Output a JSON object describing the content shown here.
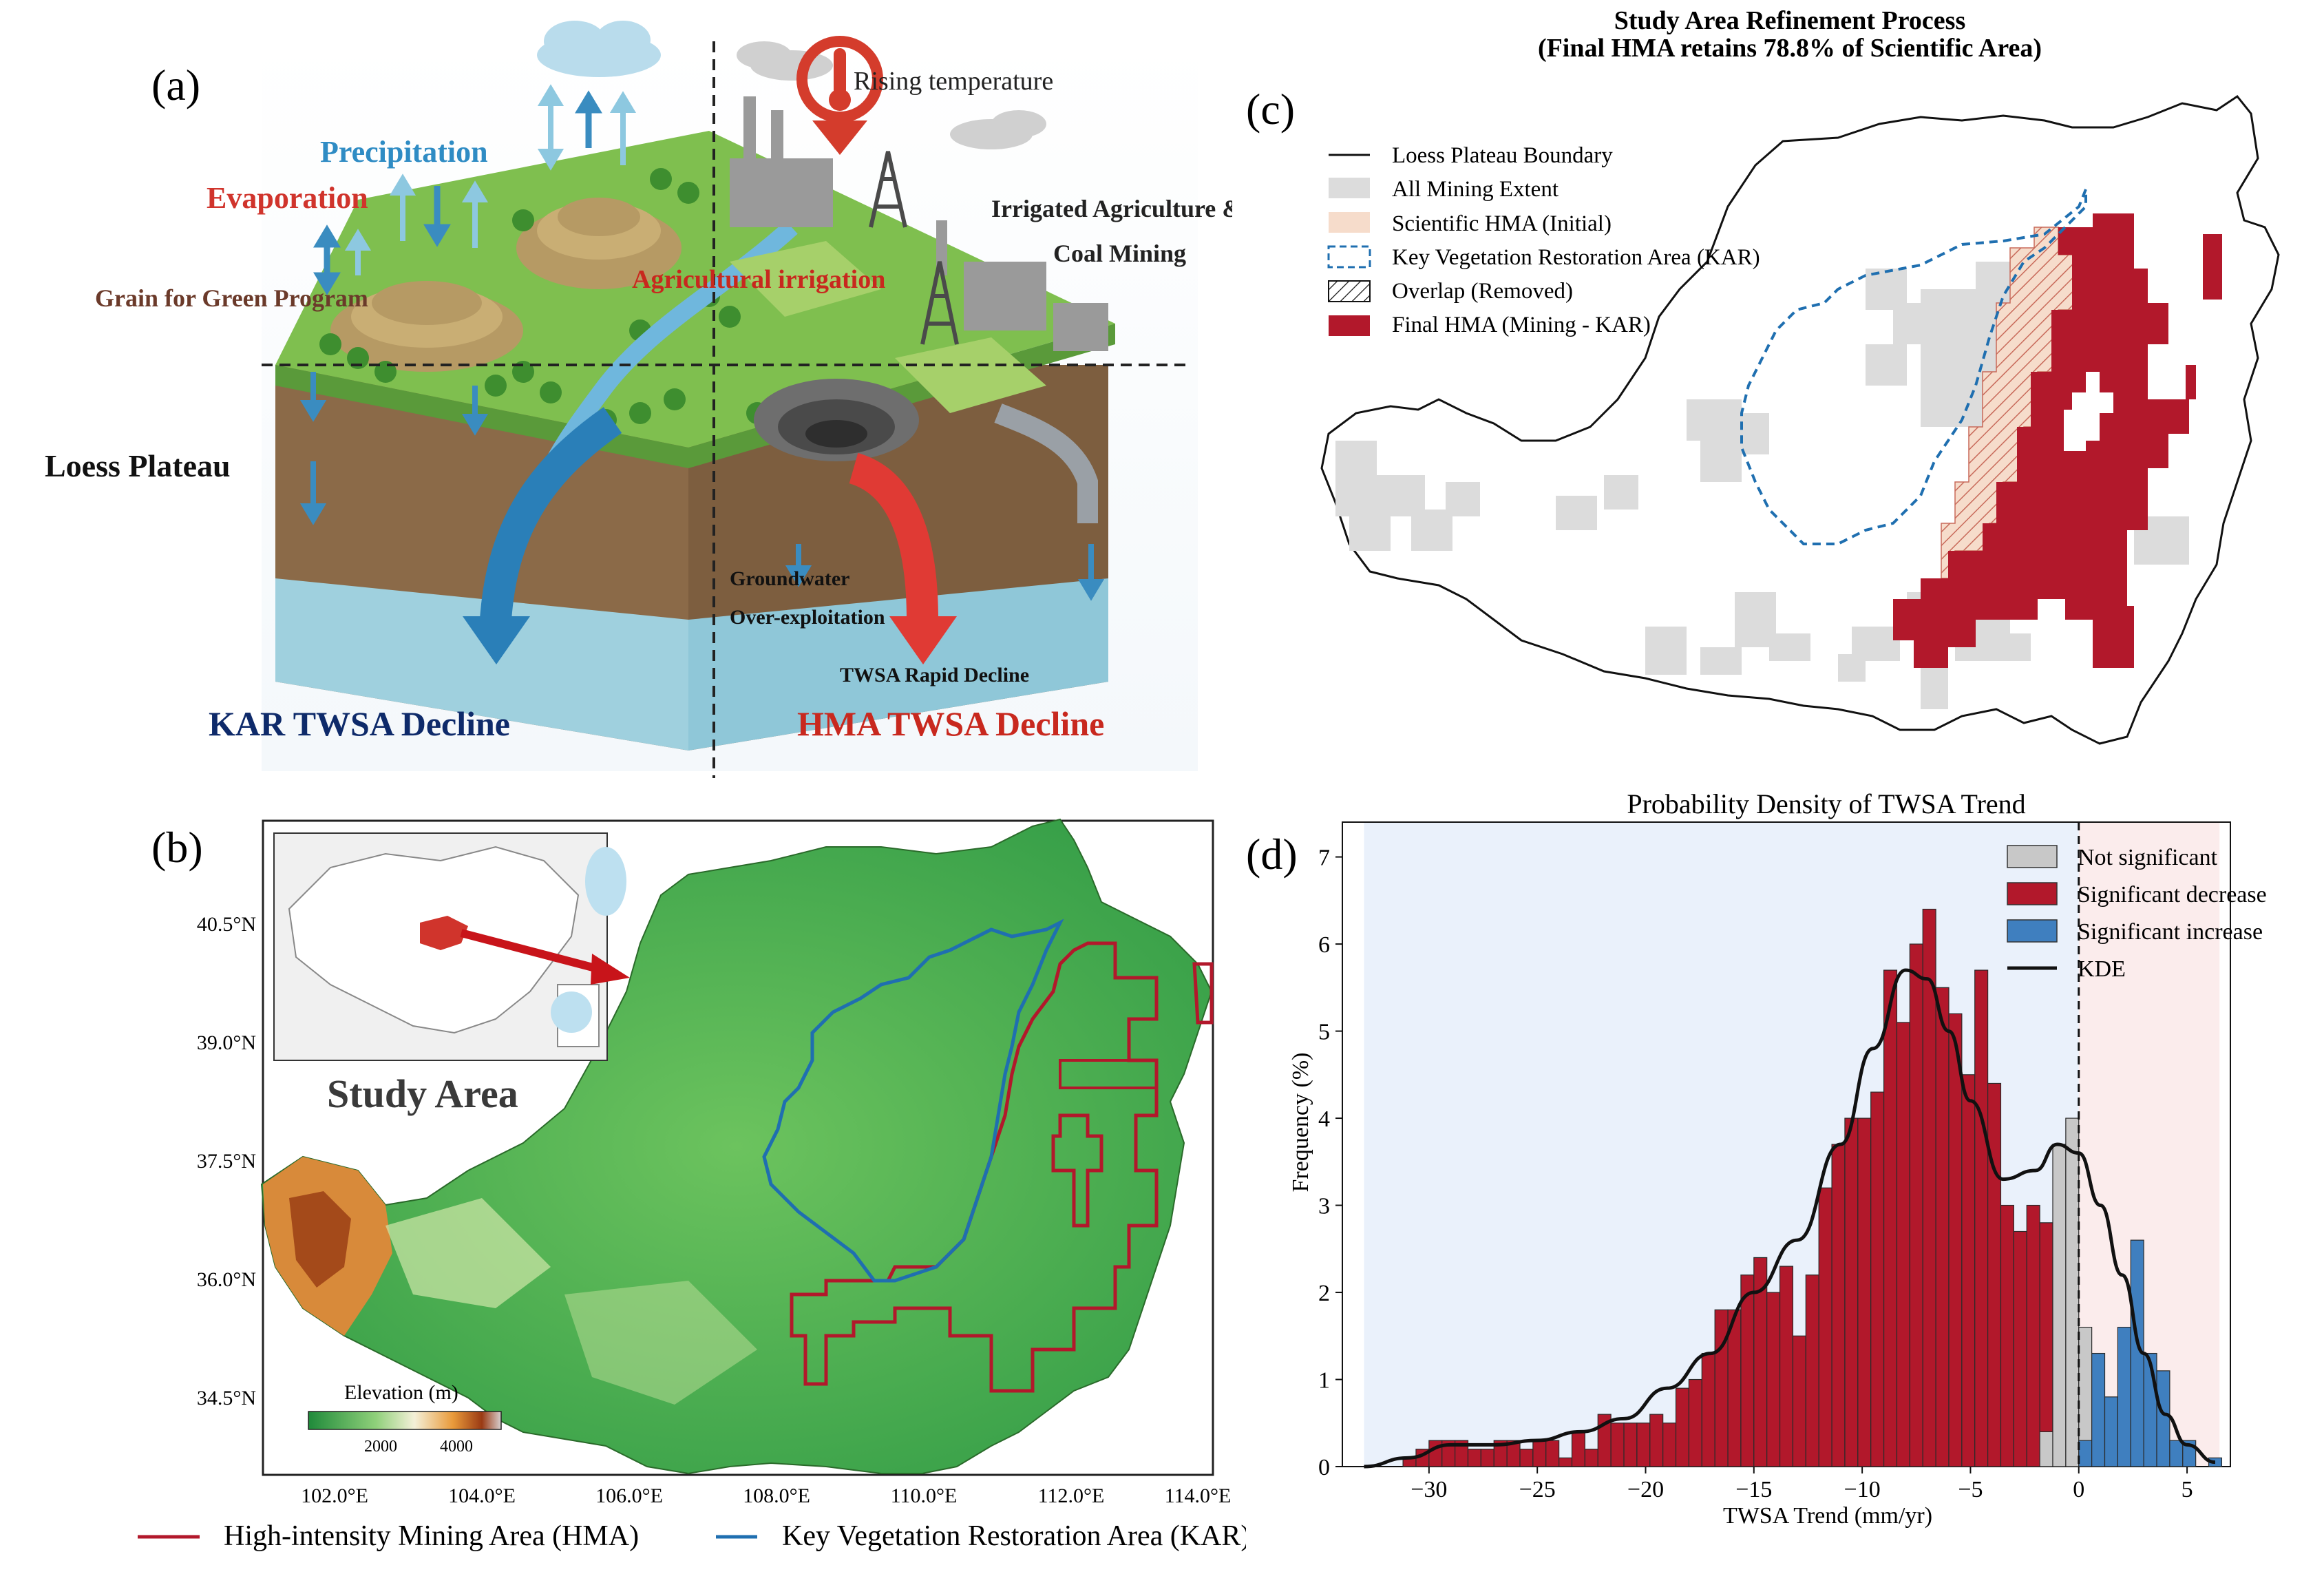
{
  "colors": {
    "hma_red": "#b2182b",
    "kar_blue": "#1f6fb0",
    "grey": "#c8c8c8",
    "blue_bar": "#3f7fbf",
    "hatch_fill": "#f6dccb",
    "neg_bg": "#eaf1fb",
    "pos_bg": "#fbecec"
  },
  "panel_a": {
    "label": "(a)",
    "precipitation": "Precipitation",
    "evaporation": "Evaporation",
    "rising_temperature": "Rising temperature",
    "grain_for_green": "Grain for Green Program",
    "agricultural_irrigation": "Agricultural irrigation",
    "irrigated_agriculture_1": "Irrigated Agriculture &",
    "irrigated_agriculture_2": "Coal Mining",
    "loess_plateau": "Loess Plateau",
    "groundwater_1": "Groundwater",
    "groundwater_2": "Over-exploitation",
    "twsa_rapid_decline": "TWSA Rapid Decline",
    "kar_decline": "KAR TWSA Decline",
    "hma_decline": "HMA TWSA Decline"
  },
  "panel_b": {
    "label": "(b)",
    "study_area": "Study Area",
    "elevation_title": "Elevation (m)",
    "elevation_ticks": [
      "2000",
      "4000"
    ],
    "lat_ticks": [
      "40.5°N",
      "39.0°N",
      "37.5°N",
      "36.0°N",
      "34.5°N"
    ],
    "lon_ticks": [
      "102.0°E",
      "104.0°E",
      "106.0°E",
      "108.0°E",
      "110.0°E",
      "112.0°E",
      "114.0°E"
    ],
    "legend_hma": "High-intensity Mining Area (HMA)",
    "legend_kar": "Key Vegetation Restoration Area (KAR)"
  },
  "panel_c": {
    "label": "(c)",
    "title_line1": "Study Area Refinement Process",
    "title_line2": "(Final HMA retains 78.8% of Scientific Area)",
    "legend": [
      "Loess Plateau Boundary",
      "All Mining Extent",
      "Scientific HMA (Initial)",
      "Key Vegetation Restoration Area (KAR)",
      "Overlap (Removed)",
      "Final HMA (Mining - KAR)"
    ]
  },
  "panel_d": {
    "label": "(d)",
    "legend": [
      "Not significant",
      "Significant decrease",
      "Significant increase",
      "KDE"
    ]
  },
  "chart_data": {
    "type": "bar",
    "title": "Probability Density of TWSA Trend",
    "xlabel": "TWSA Trend (mm/yr)",
    "ylabel": "Frequency (%)",
    "xlim": [
      -34,
      7
    ],
    "ylim": [
      0,
      7.4
    ],
    "x_ticks": [
      -30,
      -25,
      -20,
      -15,
      -10,
      -5,
      0,
      5
    ],
    "x_tick_labels": [
      "−30",
      "−25",
      "−20",
      "−15",
      "−10",
      "−5",
      "0",
      "5"
    ],
    "y_ticks": [
      0,
      1,
      2,
      3,
      4,
      5,
      6,
      7
    ],
    "bin_width": 0.6,
    "series": [
      {
        "name": "Significant decrease",
        "x": [
          -31.2,
          -30.6,
          -30.0,
          -29.4,
          -28.8,
          -28.2,
          -27.6,
          -27.0,
          -26.4,
          -25.8,
          -25.2,
          -24.6,
          -24.0,
          -23.4,
          -22.8,
          -22.2,
          -21.6,
          -21.0,
          -20.4,
          -19.8,
          -19.2,
          -18.6,
          -18.0,
          -17.4,
          -16.8,
          -16.2,
          -15.6,
          -15.0,
          -14.4,
          -13.8,
          -13.2,
          -12.6,
          -12.0,
          -11.4,
          -10.8,
          -10.2,
          -9.6,
          -9.0,
          -8.4,
          -7.8,
          -7.2,
          -6.6,
          -6.0,
          -5.4,
          -4.8,
          -4.2,
          -3.6,
          -3.0,
          -2.4,
          -1.8,
          -1.2,
          -0.6
        ],
        "values": [
          0.1,
          0.2,
          0.3,
          0.3,
          0.3,
          0.2,
          0.2,
          0.3,
          0.3,
          0.2,
          0.3,
          0.3,
          0.1,
          0.4,
          0.2,
          0.6,
          0.5,
          0.5,
          0.5,
          0.6,
          0.5,
          0.9,
          1.0,
          1.3,
          1.8,
          1.8,
          2.2,
          2.4,
          2.0,
          2.3,
          1.5,
          2.2,
          3.2,
          3.7,
          4.0,
          4.0,
          4.3,
          5.7,
          5.1,
          6.0,
          6.4,
          5.5,
          5.2,
          4.5,
          5.7,
          4.4,
          3.0,
          2.7,
          3.0,
          2.8,
          2.4,
          0.9
        ]
      },
      {
        "name": "Not significant",
        "x": [
          -1.8,
          -1.2,
          -0.6,
          0.0,
          0.6
        ],
        "values": [
          0.4,
          3.7,
          4.0,
          1.6,
          0.7
        ]
      },
      {
        "name": "Significant increase",
        "x": [
          0.0,
          0.6,
          1.2,
          1.8,
          2.4,
          3.0,
          3.6,
          4.2,
          4.8,
          5.4,
          6.0
        ],
        "values": [
          0.3,
          1.3,
          0.8,
          1.6,
          2.6,
          1.3,
          1.1,
          0.3,
          0.3,
          0.0,
          0.1
        ]
      },
      {
        "name": "KDE",
        "x": [
          -33,
          -31,
          -29,
          -27,
          -25,
          -23,
          -21,
          -19,
          -17,
          -15,
          -13,
          -11,
          -9.5,
          -8,
          -7,
          -6,
          -5,
          -3.5,
          -2,
          -1,
          0,
          1,
          2,
          3,
          4,
          5,
          6.3
        ],
        "values": [
          0.0,
          0.1,
          0.25,
          0.25,
          0.3,
          0.4,
          0.55,
          0.9,
          1.3,
          2.0,
          2.6,
          3.7,
          4.8,
          5.7,
          5.6,
          5.0,
          4.2,
          3.3,
          3.4,
          3.7,
          3.6,
          3.0,
          2.2,
          1.3,
          0.6,
          0.25,
          0.05
        ]
      }
    ]
  }
}
